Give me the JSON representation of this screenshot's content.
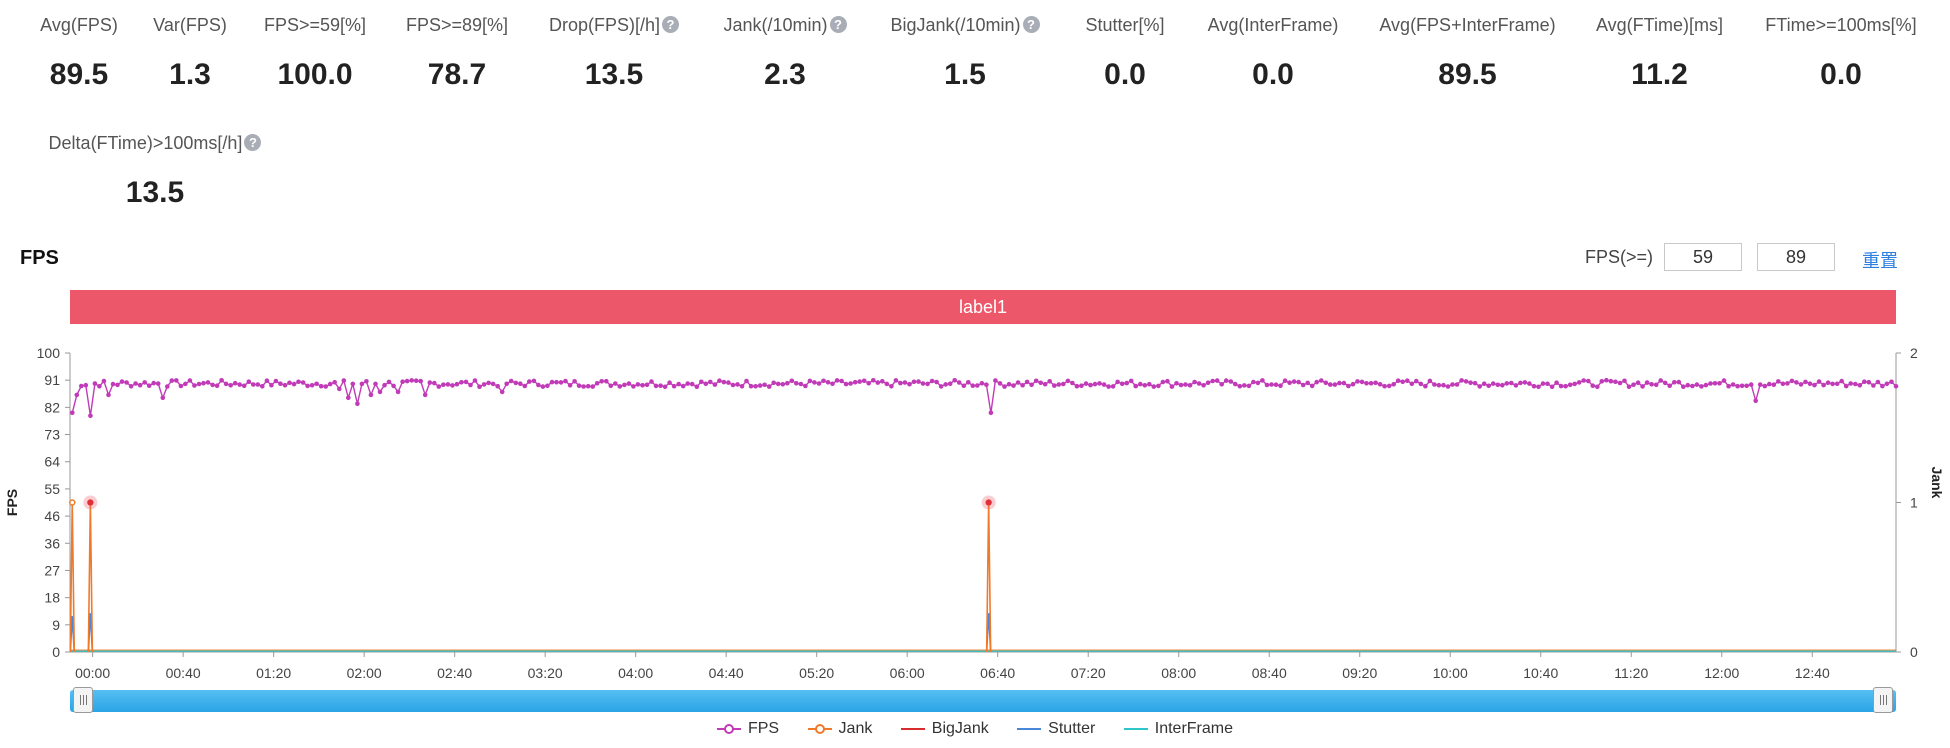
{
  "metrics": [
    {
      "label": "Avg(FPS)",
      "value": "89.5",
      "help": false
    },
    {
      "label": "Var(FPS)",
      "value": "1.3",
      "help": false
    },
    {
      "label": "FPS>=59[%]",
      "value": "100.0",
      "help": false
    },
    {
      "label": "FPS>=89[%]",
      "value": "78.7",
      "help": false
    },
    {
      "label": "Drop(FPS)[/h]",
      "value": "13.5",
      "help": true
    },
    {
      "label": "Jank(/10min)",
      "value": "2.3",
      "help": true
    },
    {
      "label": "BigJank(/10min)",
      "value": "1.5",
      "help": true
    },
    {
      "label": "Stutter[%]",
      "value": "0.0",
      "help": false
    },
    {
      "label": "Avg(InterFrame)",
      "value": "0.0",
      "help": false
    },
    {
      "label": "Avg(FPS+InterFrame)",
      "value": "89.5",
      "help": false
    },
    {
      "label": "Avg(FTime)[ms]",
      "value": "11.2",
      "help": false
    },
    {
      "label": "FTime>=100ms[%]",
      "value": "0.0",
      "help": false
    },
    {
      "label": "Delta(FTime)>100ms[/h]",
      "value": "13.5",
      "help": true
    }
  ],
  "help_glyph": "?",
  "section": {
    "title": "FPS"
  },
  "threshold": {
    "label": "FPS(>=)",
    "low": "59",
    "high": "89",
    "reset_label": "重置"
  },
  "label_bar": {
    "text": "label1",
    "color": "#ec5869"
  },
  "chart_data": {
    "type": "line",
    "x_ticks": [
      "00:00",
      "00:40",
      "01:20",
      "02:00",
      "02:40",
      "03:20",
      "04:00",
      "04:40",
      "05:20",
      "06:00",
      "06:40",
      "07:20",
      "08:00",
      "08:40",
      "09:20",
      "10:00",
      "10:40",
      "11:20",
      "12:00",
      "12:40"
    ],
    "x_range_seconds": [
      -10,
      797
    ],
    "y_left": {
      "label": "FPS",
      "ticks": [
        "0",
        "9",
        "18",
        "27",
        "36",
        "46",
        "55",
        "64",
        "73",
        "82",
        "91",
        "100"
      ],
      "range": [
        0,
        100
      ]
    },
    "y_right": {
      "label": "Jank",
      "ticks": [
        "0",
        "1",
        "2"
      ],
      "range": [
        0,
        2
      ]
    },
    "fps_baseline": 89.8,
    "fps_dips": [
      {
        "t": -9,
        "v": 80
      },
      {
        "t": -7,
        "v": 86
      },
      {
        "t": -1,
        "v": 79
      },
      {
        "t": 7,
        "v": 86
      },
      {
        "t": 31,
        "v": 85
      },
      {
        "t": 108,
        "v": 88
      },
      {
        "t": 112,
        "v": 85
      },
      {
        "t": 116,
        "v": 83
      },
      {
        "t": 122,
        "v": 86
      },
      {
        "t": 126,
        "v": 87
      },
      {
        "t": 134,
        "v": 87
      },
      {
        "t": 146,
        "v": 86
      },
      {
        "t": 181,
        "v": 87
      },
      {
        "t": 396,
        "v": 80
      },
      {
        "t": 734,
        "v": 84
      }
    ],
    "series": [
      {
        "name": "FPS",
        "color": "#c13ab8",
        "axis": "left"
      },
      {
        "name": "Jank",
        "color": "#f07a2a",
        "axis": "right",
        "points": [
          {
            "t": -9,
            "v": 1
          },
          {
            "t": -1,
            "v": 1
          },
          {
            "t": 396,
            "v": 1
          }
        ]
      },
      {
        "name": "BigJank",
        "color": "#d92c2c",
        "axis": "right",
        "points": []
      },
      {
        "name": "Stutter",
        "color": "#4a86d8",
        "axis": "left",
        "points": [
          {
            "t": -9,
            "v": 12
          },
          {
            "t": -1,
            "v": 13
          },
          {
            "t": 396,
            "v": 13
          }
        ]
      },
      {
        "name": "InterFrame",
        "color": "#2ec7c9",
        "axis": "left",
        "points": []
      }
    ],
    "markers": [
      {
        "t": -1,
        "v": 1
      },
      {
        "t": 396,
        "v": 1
      }
    ],
    "grid": false,
    "legend_position": "bottom"
  }
}
